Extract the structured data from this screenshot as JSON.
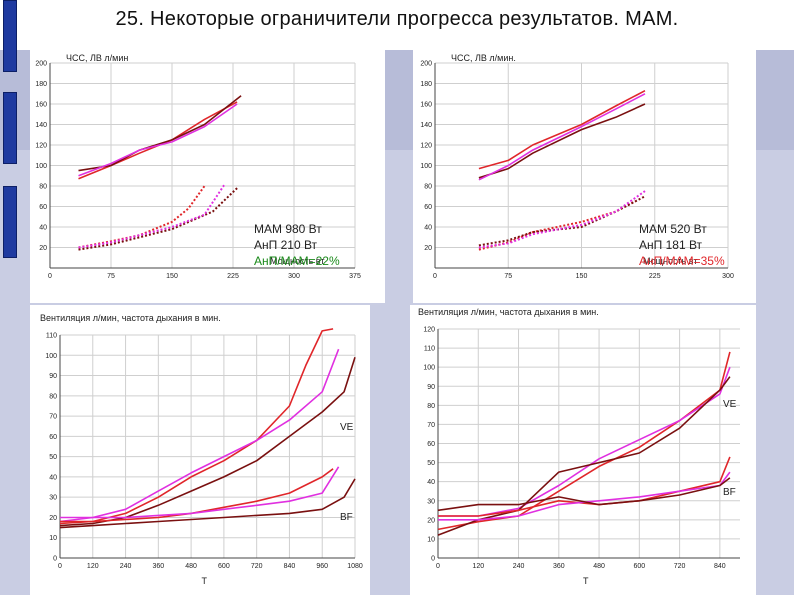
{
  "slide": {
    "title": "25. Некоторые ограничители прогресса результатов. МАМ."
  },
  "colors": {
    "red": "#e0262a",
    "darkred": "#7a1010",
    "magenta": "#e030e0",
    "background_band": "#b7bcd8",
    "side_bar": "#1f3aa0"
  },
  "chart_data": [
    {
      "type": "line",
      "ylabel": "ЧСС, ЛВ л/мин",
      "xlabel": "Мощность вт",
      "xlim": [
        0,
        375
      ],
      "ylim": [
        0,
        200
      ],
      "x_ticks": [
        0,
        75,
        150,
        225,
        300,
        375
      ],
      "y_ticks": [
        20,
        40,
        60,
        80,
        100,
        120,
        140,
        160,
        180,
        200
      ],
      "grid": true,
      "annotation": [
        "МАМ 980 Вт",
        "АнП  210 Вт",
        "АнП/МАМ=22%"
      ],
      "series": [
        {
          "color": "red",
          "dashed": false,
          "x": [
            35,
            75,
            110,
            150,
            190,
            230
          ],
          "y": [
            87,
            100,
            112,
            125,
            145,
            162
          ]
        },
        {
          "color": "darkred",
          "dashed": false,
          "x": [
            35,
            75,
            110,
            150,
            190,
            235
          ],
          "y": [
            95,
            100,
            115,
            125,
            140,
            168
          ]
        },
        {
          "color": "magenta",
          "dashed": false,
          "x": [
            35,
            75,
            110,
            150,
            190,
            230
          ],
          "y": [
            90,
            102,
            115,
            123,
            138,
            160
          ]
        },
        {
          "color": "red",
          "dashed": true,
          "x": [
            35,
            75,
            110,
            150,
            170,
            190
          ],
          "y": [
            20,
            26,
            32,
            45,
            58,
            80
          ]
        },
        {
          "color": "darkred",
          "dashed": true,
          "x": [
            35,
            75,
            110,
            150,
            200,
            230
          ],
          "y": [
            18,
            23,
            30,
            38,
            55,
            78
          ]
        },
        {
          "color": "magenta",
          "dashed": true,
          "x": [
            35,
            75,
            110,
            150,
            190,
            215
          ],
          "y": [
            20,
            25,
            32,
            40,
            52,
            82
          ]
        }
      ]
    },
    {
      "type": "line",
      "ylabel": "ЧСС, ЛВ л/мин.",
      "xlabel": "Мощность вт",
      "xlim": [
        0,
        300
      ],
      "ylim": [
        0,
        200
      ],
      "x_ticks": [
        0,
        75,
        150,
        225,
        300
      ],
      "y_ticks": [
        20,
        40,
        60,
        80,
        100,
        120,
        140,
        160,
        180,
        200
      ],
      "grid": true,
      "annotation": [
        "МАМ 520 Вт",
        "АнП  181 Вт",
        "АнП/МАМ=35%"
      ],
      "series": [
        {
          "color": "red",
          "dashed": false,
          "x": [
            45,
            75,
            100,
            150,
            185,
            215
          ],
          "y": [
            97,
            105,
            120,
            140,
            158,
            173
          ]
        },
        {
          "color": "darkred",
          "dashed": false,
          "x": [
            45,
            75,
            100,
            150,
            185,
            215
          ],
          "y": [
            88,
            97,
            112,
            135,
            147,
            160
          ]
        },
        {
          "color": "magenta",
          "dashed": false,
          "x": [
            45,
            75,
            100,
            150,
            185,
            215
          ],
          "y": [
            86,
            100,
            115,
            138,
            155,
            170
          ]
        },
        {
          "color": "red",
          "dashed": true,
          "x": [
            45,
            75,
            100,
            150,
            185,
            205
          ],
          "y": [
            18,
            25,
            35,
            45,
            55,
            65
          ]
        },
        {
          "color": "darkred",
          "dashed": true,
          "x": [
            45,
            75,
            100,
            150,
            185,
            215
          ],
          "y": [
            22,
            27,
            35,
            40,
            55,
            70
          ]
        },
        {
          "color": "magenta",
          "dashed": true,
          "x": [
            45,
            75,
            100,
            150,
            185,
            215
          ],
          "y": [
            20,
            24,
            33,
            42,
            55,
            75
          ]
        }
      ]
    },
    {
      "type": "line",
      "ylabel": "Вентиляция л/мин, частота дыхания в мин.",
      "xlabel": "Т",
      "xlim": [
        0,
        1080
      ],
      "ylim": [
        0,
        110
      ],
      "x_ticks": [
        0,
        120,
        240,
        360,
        480,
        600,
        720,
        840,
        960,
        1080
      ],
      "y_ticks": [
        0,
        10,
        20,
        30,
        40,
        50,
        60,
        70,
        80,
        90,
        100,
        110
      ],
      "grid": true,
      "labels": [
        "VE",
        "BF"
      ],
      "series": [
        {
          "color": "red",
          "x": [
            0,
            120,
            240,
            360,
            480,
            600,
            720,
            840,
            900,
            960,
            1000
          ],
          "y": [
            17,
            18,
            22,
            30,
            40,
            48,
            58,
            75,
            95,
            112,
            113
          ]
        },
        {
          "color": "magenta",
          "x": [
            0,
            120,
            240,
            360,
            480,
            600,
            720,
            840,
            960,
            1020
          ],
          "y": [
            18,
            20,
            24,
            33,
            42,
            50,
            58,
            68,
            82,
            103
          ]
        },
        {
          "color": "darkred",
          "x": [
            0,
            120,
            240,
            360,
            480,
            600,
            720,
            840,
            960,
            1040,
            1080
          ],
          "y": [
            16,
            17,
            20,
            26,
            33,
            40,
            48,
            60,
            72,
            82,
            99
          ]
        },
        {
          "color": "red",
          "x": [
            0,
            120,
            240,
            360,
            480,
            600,
            720,
            840,
            960,
            1000
          ],
          "y": [
            18,
            18,
            19,
            20,
            22,
            25,
            28,
            32,
            40,
            44
          ]
        },
        {
          "color": "magenta",
          "x": [
            0,
            120,
            240,
            360,
            480,
            600,
            720,
            840,
            960,
            1020
          ],
          "y": [
            20,
            20,
            20,
            21,
            22,
            24,
            26,
            28,
            32,
            45
          ]
        },
        {
          "color": "darkred",
          "x": [
            0,
            120,
            240,
            360,
            480,
            600,
            720,
            840,
            960,
            1040,
            1080
          ],
          "y": [
            15,
            16,
            17,
            18,
            19,
            20,
            21,
            22,
            24,
            30,
            39
          ]
        }
      ]
    },
    {
      "type": "line",
      "ylabel": "Вентиляция л/мин, частота дыхания в мин.",
      "xlabel": "Т",
      "xlim": [
        0,
        900
      ],
      "ylim": [
        0,
        120
      ],
      "x_ticks": [
        0,
        120,
        240,
        360,
        480,
        600,
        720,
        840
      ],
      "y_ticks": [
        0,
        10,
        20,
        30,
        40,
        50,
        60,
        70,
        80,
        90,
        100,
        110,
        120
      ],
      "grid": true,
      "labels": [
        "VE",
        "BF"
      ],
      "series": [
        {
          "color": "red",
          "x": [
            0,
            120,
            240,
            360,
            480,
            600,
            720,
            840,
            870
          ],
          "y": [
            15,
            19,
            22,
            35,
            48,
            58,
            72,
            88,
            108
          ]
        },
        {
          "color": "magenta",
          "x": [
            0,
            120,
            240,
            360,
            480,
            600,
            720,
            840,
            870
          ],
          "y": [
            22,
            22,
            26,
            38,
            52,
            62,
            72,
            86,
            100
          ]
        },
        {
          "color": "darkred",
          "x": [
            0,
            120,
            240,
            360,
            480,
            600,
            720,
            840,
            870
          ],
          "y": [
            12,
            20,
            25,
            45,
            50,
            55,
            68,
            88,
            95
          ]
        },
        {
          "color": "red",
          "x": [
            0,
            120,
            240,
            360,
            480,
            600,
            720,
            840,
            870
          ],
          "y": [
            22,
            22,
            25,
            30,
            28,
            30,
            35,
            40,
            53
          ]
        },
        {
          "color": "magenta",
          "x": [
            0,
            120,
            240,
            360,
            480,
            600,
            720,
            840,
            870
          ],
          "y": [
            20,
            20,
            22,
            28,
            30,
            32,
            35,
            38,
            45
          ]
        },
        {
          "color": "darkred",
          "x": [
            0,
            120,
            240,
            360,
            480,
            600,
            720,
            840,
            870
          ],
          "y": [
            25,
            28,
            28,
            32,
            28,
            30,
            33,
            38,
            42
          ]
        }
      ]
    }
  ]
}
